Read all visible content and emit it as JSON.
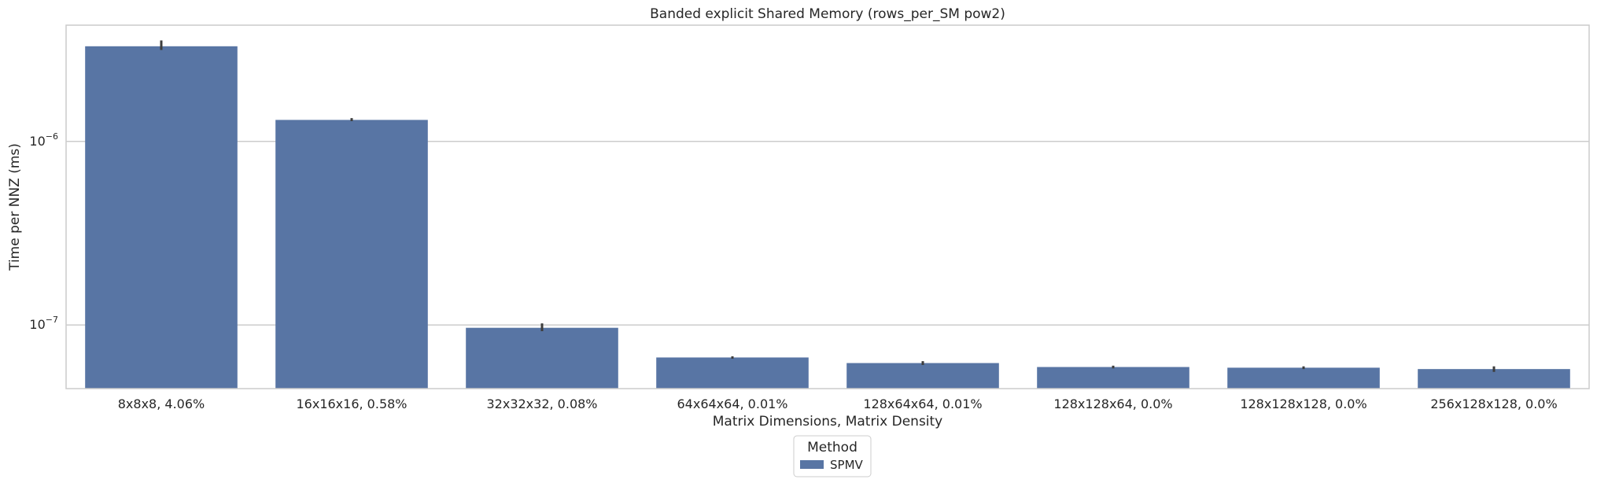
{
  "chart_data": {
    "type": "bar",
    "title": "Banded explicit Shared Memory (rows_per_SM pow2)",
    "xlabel": "Matrix Dimensions, Matrix Density",
    "ylabel": "Time per NNZ (ms)",
    "yscale": "log",
    "ylim": [
      4.5e-08,
      4.3e-06
    ],
    "grid": true,
    "legend_position": "bottom-center",
    "legend_title": "Method",
    "categories": [
      "8x8x8, 4.06%",
      "16x16x16, 0.58%",
      "32x32x32, 0.08%",
      "64x64x64, 0.01%",
      "128x64x64, 0.01%",
      "128x128x64, 0.0%",
      "128x128x128, 0.0%",
      "256x128x128, 0.0%"
    ],
    "series": [
      {
        "name": "SPMV",
        "color": "#5875a4",
        "values": [
          3.3e-06,
          1.31e-06,
          9.65e-08,
          6.65e-08,
          6.2e-08,
          5.9e-08,
          5.85e-08,
          5.75e-08
        ],
        "error_low": [
          3.15e-06,
          1.29e-06,
          9.25e-08,
          6.55e-08,
          6.05e-08,
          5.8e-08,
          5.75e-08,
          5.55e-08
        ],
        "error_high": [
          3.55e-06,
          1.34e-06,
          1.02e-07,
          6.75e-08,
          6.35e-08,
          6e-08,
          5.95e-08,
          5.95e-08
        ]
      }
    ],
    "y_ticks": [
      {
        "value": 1e-07,
        "base": "10",
        "exponent": "−7"
      },
      {
        "value": 1e-06,
        "base": "10",
        "exponent": "−6"
      }
    ]
  }
}
